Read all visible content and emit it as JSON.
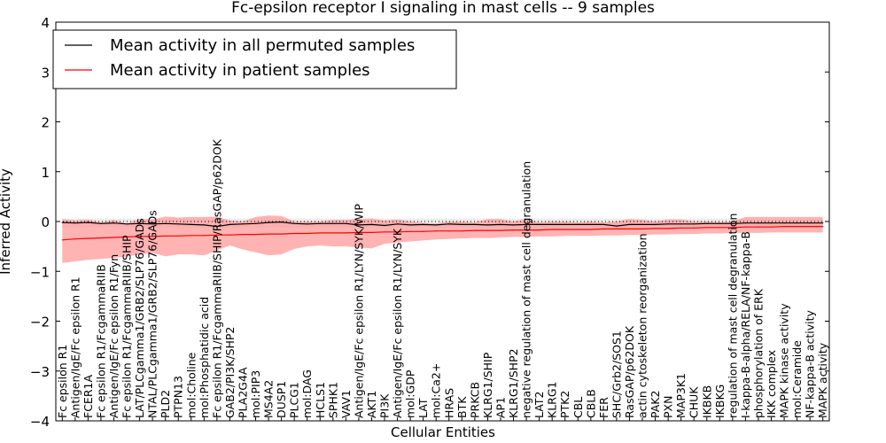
{
  "chart_data": {
    "type": "line",
    "title": "Fc-epsilon receptor I signaling in mast cells -- 9 samples",
    "xlabel": "Cellular Entities",
    "ylabel": "Inferred Activity",
    "ylim": [
      -4,
      4
    ],
    "yticks": [
      "4",
      "3",
      "2",
      "1",
      "0",
      "−1",
      "−2",
      "−3",
      "−4"
    ],
    "legend_position": "top-left",
    "categories": [
      "Fc epsilon R1",
      "Antigen/IgE/Fc epsilon R1",
      "FCER1A",
      "Fc epsilon R1/FcgammaRIIB",
      "Antigen/IgE/Fc epsilon R1/Fyn",
      "Fc epsilon R1/FcgammaRIIB/SHIP",
      "LAT/PLCgamma1/GRB2/SLP76/GADs",
      "NTAL/PLCgamma1/GRB2/SLP76/GADs",
      "PLD2",
      "PTPN13",
      "mol:Choline",
      "mol:Phosphatidic acid",
      "Fc epsilon R1/FcgammaRIIB/SHIP/RasGAP/p62DOK",
      "GAB2/PI3K/SHP2",
      "PLA2G4A",
      "mol:PIP3",
      "MS4A2",
      "DUSP1",
      "PLCG1",
      "mol:DAG",
      "HCLS1",
      "SPHK1",
      "VAV1",
      "Antigen/IgE/Fc epsilon R1/LYN/SYK/WIP",
      "AKT1",
      "PI3K",
      "Antigen/IgE/Fc epsilon R1/LYN/SYK",
      "mol:GDP",
      "LAT",
      "mol:Ca2+",
      "HRAS",
      "BTK",
      "PRKCB",
      "KLRG1/SHIP",
      "AP1",
      "KLRG1/SHP2",
      "negative regulation of mast cell degranulation",
      "LAT2",
      "KLRG1",
      "PTK2",
      "CBL",
      "CBLB",
      "FER",
      "SHC/Grb2/SOS1",
      "RasGAP/p62DOK",
      "actin cytoskeleton reorganization",
      "PAK2",
      "PXN",
      "MAP3K1",
      "CHUK",
      "IKBKB",
      "IKBKG",
      "regulation of mast cell degranulation",
      "I-kappa-B-alpha/RELA/NF-kappa-B",
      "phosphorylation of ERK",
      "IKK complex",
      "MAPK kinase activity",
      "mol:Ceramide",
      "NF-kappa-B activity",
      "MAPK activity"
    ],
    "series": [
      {
        "name": "Mean activity in all permuted samples",
        "color": "#000000",
        "values": [
          -0.02,
          -0.03,
          -0.02,
          -0.04,
          -0.03,
          -0.05,
          -0.04,
          -0.05,
          -0.04,
          -0.05,
          -0.06,
          -0.07,
          -0.1,
          -0.06,
          -0.05,
          -0.04,
          -0.02,
          -0.01,
          -0.04,
          -0.05,
          -0.04,
          -0.04,
          -0.04,
          -0.07,
          -0.06,
          -0.08,
          -0.05,
          -0.07,
          -0.06,
          -0.07,
          -0.05,
          -0.06,
          -0.06,
          -0.07,
          -0.06,
          -0.07,
          -0.06,
          -0.06,
          -0.06,
          -0.06,
          -0.06,
          -0.06,
          -0.06,
          -0.09,
          -0.06,
          -0.06,
          -0.06,
          -0.05,
          -0.05,
          -0.05,
          -0.04,
          -0.04,
          -0.04,
          -0.03,
          -0.03,
          -0.03,
          -0.03,
          -0.03,
          -0.03,
          -0.03
        ],
        "band_upper": [
          0.06,
          0.06,
          0.06,
          0.06,
          0.06,
          0.06,
          0.06,
          0.06,
          0.06,
          0.06,
          0.06,
          0.06,
          0.06,
          0.06,
          0.06,
          0.06,
          0.06,
          0.06,
          0.06,
          0.06,
          0.06,
          0.06,
          0.06,
          0.06,
          0.06,
          0.06,
          0.06,
          0.06,
          0.06,
          0.06,
          0.06,
          0.06,
          0.06,
          0.06,
          0.06,
          0.06,
          0.06,
          0.06,
          0.06,
          0.06,
          0.06,
          0.06,
          0.06,
          0.06,
          0.06,
          0.06,
          0.06,
          0.06,
          0.06,
          0.06,
          0.06,
          0.06,
          0.06,
          0.06,
          0.06,
          0.06,
          0.06,
          0.06,
          0.06,
          0.06
        ],
        "band_lower": [
          -0.12,
          -0.12,
          -0.12,
          -0.12,
          -0.12,
          -0.12,
          -0.12,
          -0.12,
          -0.12,
          -0.12,
          -0.12,
          -0.12,
          -0.14,
          -0.12,
          -0.12,
          -0.12,
          -0.12,
          -0.12,
          -0.12,
          -0.12,
          -0.12,
          -0.12,
          -0.12,
          -0.12,
          -0.12,
          -0.12,
          -0.12,
          -0.12,
          -0.12,
          -0.12,
          -0.12,
          -0.12,
          -0.12,
          -0.12,
          -0.12,
          -0.12,
          -0.12,
          -0.12,
          -0.12,
          -0.12,
          -0.12,
          -0.12,
          -0.12,
          -0.14,
          -0.12,
          -0.12,
          -0.12,
          -0.12,
          -0.12,
          -0.12,
          -0.12,
          -0.12,
          -0.12,
          -0.12,
          -0.12,
          -0.12,
          -0.12,
          -0.12,
          -0.12,
          -0.12
        ]
      },
      {
        "name": "Mean activity in patient samples",
        "color": "#ff0000",
        "values": [
          -0.37,
          -0.35,
          -0.34,
          -0.33,
          -0.32,
          -0.31,
          -0.3,
          -0.3,
          -0.29,
          -0.29,
          -0.28,
          -0.28,
          -0.27,
          -0.27,
          -0.26,
          -0.26,
          -0.25,
          -0.25,
          -0.24,
          -0.24,
          -0.23,
          -0.23,
          -0.23,
          -0.22,
          -0.22,
          -0.21,
          -0.21,
          -0.2,
          -0.2,
          -0.19,
          -0.19,
          -0.19,
          -0.18,
          -0.18,
          -0.18,
          -0.17,
          -0.17,
          -0.17,
          -0.16,
          -0.16,
          -0.16,
          -0.16,
          -0.15,
          -0.15,
          -0.15,
          -0.15,
          -0.14,
          -0.14,
          -0.13,
          -0.13,
          -0.12,
          -0.12,
          -0.12,
          -0.11,
          -0.11,
          -0.11,
          -0.1,
          -0.1,
          -0.1,
          -0.1
        ],
        "band_upper": [
          0.05,
          0.02,
          0.04,
          -0.02,
          0.03,
          -0.04,
          0.05,
          0.04,
          0.1,
          0.08,
          0.09,
          0.09,
          0.1,
          0.02,
          0.0,
          0.09,
          0.12,
          0.11,
          0.0,
          0.0,
          0.0,
          0.03,
          0.03,
          0.05,
          0.06,
          0.02,
          0.04,
          0.0,
          -0.03,
          -0.04,
          0.0,
          0.0,
          -0.02,
          0.05,
          0.05,
          0.0,
          0.05,
          -0.02,
          0.0,
          0.0,
          -0.02,
          0.0,
          -0.02,
          0.0,
          0.05,
          0.03,
          0.0,
          0.04,
          0.04,
          0.0,
          0.0,
          -0.01,
          0.0,
          0.09,
          0.09,
          0.09,
          0.09,
          0.09,
          0.09,
          0.09
        ],
        "band_lower": [
          -0.83,
          -0.8,
          -0.77,
          -0.75,
          -0.73,
          -0.7,
          -0.66,
          -0.63,
          -0.7,
          -0.66,
          -0.66,
          -0.68,
          -0.58,
          -0.48,
          -0.56,
          -0.62,
          -0.68,
          -0.66,
          -0.55,
          -0.5,
          -0.48,
          -0.5,
          -0.5,
          -0.52,
          -0.54,
          -0.45,
          -0.42,
          -0.4,
          -0.38,
          -0.36,
          -0.35,
          -0.34,
          -0.33,
          -0.33,
          -0.32,
          -0.31,
          -0.31,
          -0.3,
          -0.3,
          -0.29,
          -0.29,
          -0.29,
          -0.28,
          -0.28,
          -0.27,
          -0.27,
          -0.26,
          -0.26,
          -0.25,
          -0.25,
          -0.24,
          -0.24,
          -0.23,
          -0.23,
          -0.23,
          -0.22,
          -0.22,
          -0.22,
          -0.22,
          -0.22
        ]
      }
    ],
    "reference_line": {
      "y": 0,
      "style": "dotted"
    },
    "colors": {
      "permuted_band": "#dddddd",
      "patient_band": "#ff9999",
      "axis": "#000000"
    }
  }
}
